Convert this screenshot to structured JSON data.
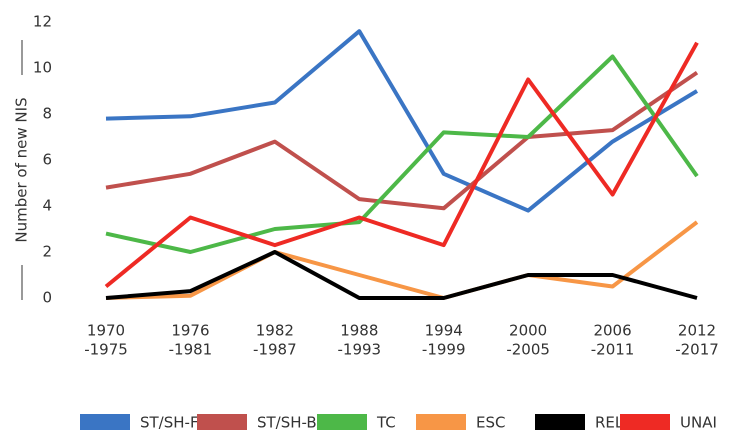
{
  "chart_data": {
    "type": "line",
    "ylabel": "Number of new NIS",
    "categories": [
      [
        "1970",
        "-1975"
      ],
      [
        "1976",
        "-1981"
      ],
      [
        "1982",
        "-1987"
      ],
      [
        "1988",
        "-1993"
      ],
      [
        "1994",
        "-1999"
      ],
      [
        "2000",
        "-2005"
      ],
      [
        "2006",
        "-2011"
      ],
      [
        "2012",
        "-2017"
      ]
    ],
    "series": [
      {
        "name": "ST/SH-FOU",
        "color": "#3a75c4",
        "values": [
          7.8,
          7.9,
          8.5,
          11.6,
          5.4,
          3.8,
          6.8,
          9.0
        ]
      },
      {
        "name": "ST/SH-BAL",
        "color": "#c0504d",
        "values": [
          4.8,
          5.4,
          6.8,
          4.3,
          3.9,
          7.0,
          7.3,
          9.8
        ]
      },
      {
        "name": "TC",
        "color": "#4db848",
        "values": [
          2.8,
          2.0,
          3.0,
          3.3,
          7.2,
          7.0,
          10.5,
          5.3
        ]
      },
      {
        "name": "ESC",
        "color": "#f79646",
        "values": [
          0,
          0.1,
          2.0,
          1.0,
          0,
          1.0,
          0.5,
          3.3
        ]
      },
      {
        "name": "REL",
        "color": "#000000",
        "values": [
          0,
          0.3,
          2.0,
          0,
          0,
          1.0,
          1.0,
          0
        ]
      },
      {
        "name": "UNAI",
        "color": "#ee2a24",
        "values": [
          0.5,
          3.5,
          2.3,
          3.5,
          2.3,
          9.5,
          4.5,
          11.1
        ]
      }
    ],
    "ylim": [
      0,
      12
    ],
    "yticks": [
      0,
      2,
      4,
      6,
      8,
      10,
      12
    ],
    "grid": false,
    "legend": "bottom"
  }
}
